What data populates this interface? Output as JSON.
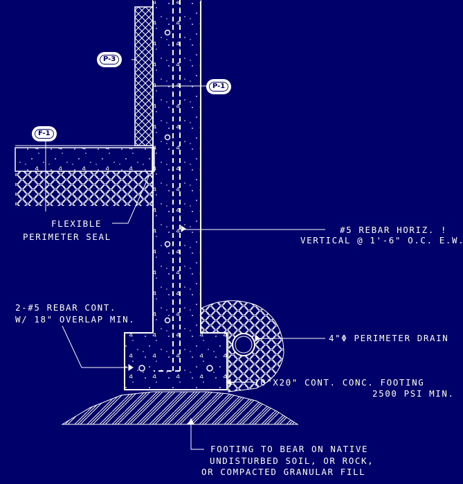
{
  "colors": {
    "background": "#00006a",
    "linework": "#ffffff"
  },
  "tags": {
    "p3": "P-3",
    "p1_wall": "P-1",
    "f1": "F-1"
  },
  "labels": {
    "seal_line1": "FLEXIBLE",
    "seal_line2": "PERIMETER SEAL",
    "rebar_horiz_line1": "#5 REBAR HORIZ. !",
    "rebar_horiz_line2": "VERTICAL @ 1'-6\" O.C. E.W.",
    "rebar_cont_line1": "2-#5 REBAR CONT.",
    "rebar_cont_line2": "W/ 18\" OVERLAP MIN.",
    "drain": "4\"Φ PERIMETER DRAIN",
    "footing_line1": "10\"X20\" CONT. CONC. FOOTING",
    "footing_line2": "2500 PSI MIN.",
    "bearing_line1": "FOOTING TO BEAR ON NATIVE",
    "bearing_line2": "UNDISTURBED SOIL, OR ROCK,",
    "bearing_line3": "OR COMPACTED GRANULAR FILL"
  }
}
